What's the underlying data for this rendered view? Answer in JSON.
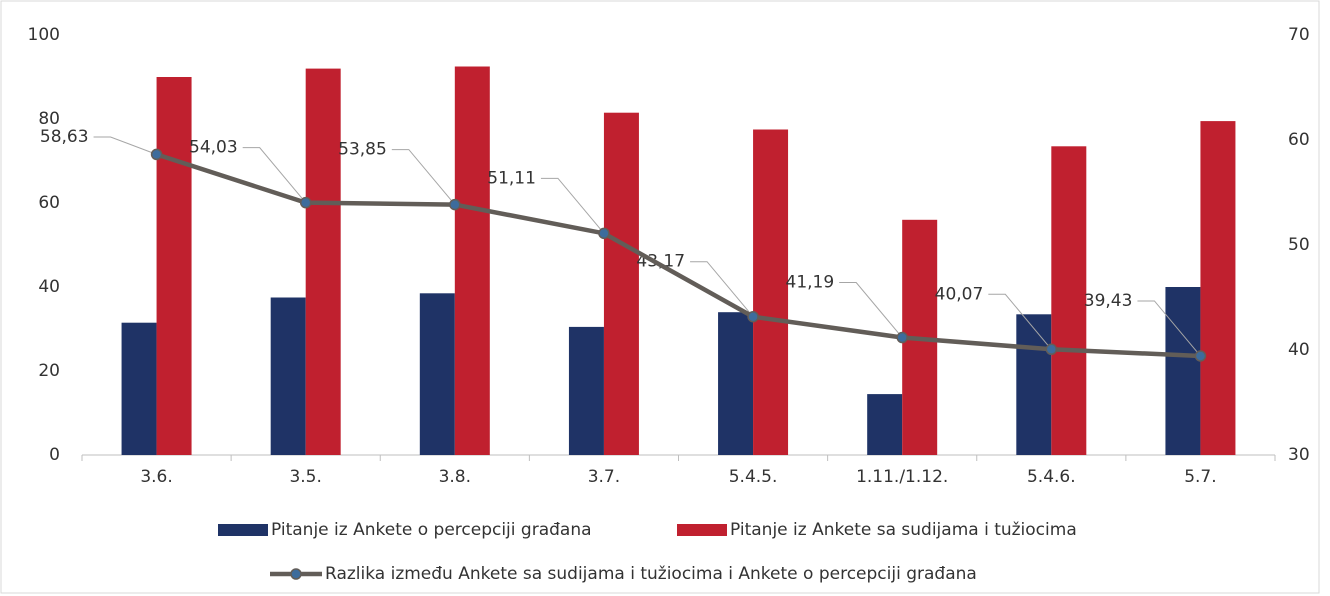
{
  "chart_data": {
    "type": "bar",
    "categories": [
      "3.6.",
      "3.5.",
      "3.8.",
      "3.7.",
      "5.4.5.",
      "1.11./1.12.",
      "5.4.6.",
      "5.7."
    ],
    "series": [
      {
        "name": "Pitanje iz Ankete o percepciji građana",
        "color": "#1f3366",
        "values": [
          31.5,
          37.5,
          38.5,
          30.5,
          34,
          14.5,
          33.5,
          40
        ]
      },
      {
        "name": "Pitanje iz Ankete sa sudijama i tužiocima",
        "color": "#c0202f",
        "values": [
          90,
          92,
          92.5,
          81.5,
          77.5,
          56,
          73.5,
          79.5
        ]
      },
      {
        "name": "Razlika između Ankete sa sudijama i tužiocima i Ankete o percepciji građana",
        "type": "line",
        "axis": "y2",
        "color": "#625d58",
        "marker_color": "#3d6c9c",
        "values": [
          58.63,
          54.03,
          53.85,
          51.11,
          43.17,
          41.19,
          40.07,
          39.43
        ],
        "value_labels": [
          "58,63",
          "54,03",
          "53,85",
          "51,11",
          "43,17",
          "41,19",
          "40,07",
          "39,43"
        ]
      }
    ],
    "ylim": [
      0,
      100
    ],
    "yticks": [
      0,
      20,
      40,
      60,
      80,
      100
    ],
    "y2lim": [
      30,
      70
    ],
    "y2ticks": [
      30,
      40,
      50,
      60,
      70
    ],
    "legend": "bottom"
  }
}
